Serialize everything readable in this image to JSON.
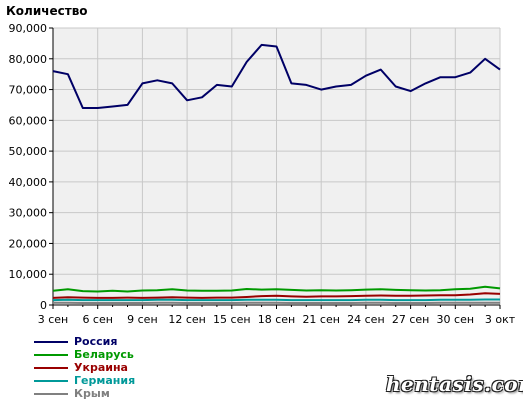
{
  "chart_data": {
    "type": "line",
    "ylabel": "Количество",
    "ylim": [
      0,
      90000
    ],
    "y_ticks": [
      "0",
      "10,000",
      "20,000",
      "30,000",
      "40,000",
      "50,000",
      "60,000",
      "70,000",
      "80,000",
      "90,000"
    ],
    "x_tick_labels": [
      "3 сен",
      "6 сен",
      "9 сен",
      "12 сен",
      "15 сен",
      "18 сен",
      "21 сен",
      "24 сен",
      "27 сен",
      "30 сен",
      "3 окт"
    ],
    "x": [
      "3 сен",
      "4 сен",
      "5 сен",
      "6 сен",
      "7 сен",
      "8 сен",
      "9 сен",
      "10 сен",
      "11 сен",
      "12 сен",
      "13 сен",
      "14 сен",
      "15 сен",
      "16 сен",
      "17 сен",
      "18 сен",
      "19 сен",
      "20 сен",
      "21 сен",
      "22 сен",
      "23 сен",
      "24 сен",
      "25 сен",
      "26 сен",
      "27 сен",
      "28 сен",
      "29 сен",
      "30 сен",
      "1 окт",
      "2 окт",
      "3 окт"
    ],
    "grid": true,
    "series": [
      {
        "name": "Россия",
        "color": "#000066",
        "values": [
          76000,
          75000,
          64000,
          64000,
          64500,
          65000,
          72000,
          73000,
          72000,
          66500,
          67500,
          71500,
          71000,
          79000,
          84500,
          84000,
          72000,
          71500,
          70000,
          71000,
          71500,
          74500,
          76500,
          71000,
          69500,
          72000,
          74000,
          74000,
          75500,
          80000,
          76500
        ]
      },
      {
        "name": "Беларусь",
        "color": "#009900",
        "values": [
          4600,
          5100,
          4500,
          4400,
          4600,
          4400,
          4700,
          4800,
          5100,
          4700,
          4600,
          4600,
          4700,
          5200,
          5000,
          5100,
          4900,
          4700,
          4800,
          4700,
          4800,
          5000,
          5100,
          4900,
          4800,
          4700,
          4800,
          5100,
          5300,
          5900,
          5400
        ]
      },
      {
        "name": "Украина",
        "color": "#990000",
        "values": [
          2300,
          2500,
          2400,
          2300,
          2300,
          2400,
          2300,
          2400,
          2500,
          2400,
          2300,
          2400,
          2400,
          2600,
          2900,
          3000,
          2800,
          2700,
          2800,
          2800,
          2900,
          3000,
          3100,
          3000,
          3000,
          3100,
          3200,
          3200,
          3400,
          3800,
          3600
        ]
      },
      {
        "name": "Германия",
        "color": "#009999",
        "values": [
          1600,
          1700,
          1600,
          1600,
          1600,
          1600,
          1600,
          1700,
          1700,
          1600,
          1600,
          1600,
          1600,
          1700,
          1700,
          1700,
          1600,
          1600,
          1600,
          1600,
          1600,
          1700,
          1700,
          1600,
          1600,
          1600,
          1700,
          1700,
          1700,
          1800,
          1800
        ]
      },
      {
        "name": "Крым",
        "color": "#808080",
        "values": [
          700,
          700,
          650,
          650,
          650,
          650,
          650,
          700,
          700,
          650,
          650,
          650,
          650,
          700,
          700,
          700,
          650,
          650,
          650,
          650,
          650,
          700,
          700,
          650,
          650,
          650,
          700,
          700,
          700,
          750,
          750
        ]
      }
    ]
  },
  "watermark": "hentasis.com"
}
